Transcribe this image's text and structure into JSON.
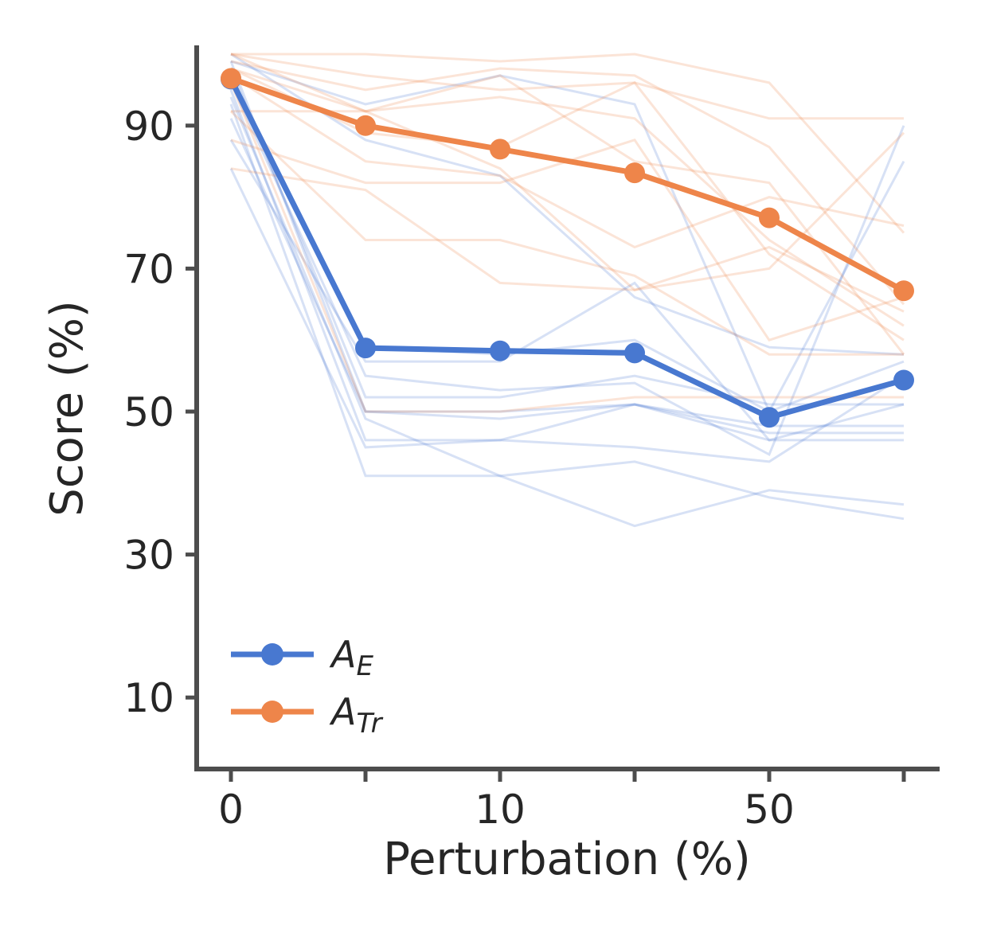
{
  "chart_data": {
    "type": "line",
    "xlabel": "Perturbation (%)",
    "ylabel": "Score (%)",
    "x_categories": [
      "0",
      "",
      "10",
      "",
      "50",
      ""
    ],
    "ylim": [
      0,
      101
    ],
    "yticks": [
      10,
      30,
      50,
      70,
      90
    ],
    "grid": false,
    "legend_position": "lower-left",
    "colors": {
      "AE": "#4878d0",
      "ATr": "#ee854a",
      "axis": "#4d4d4d"
    },
    "series": [
      {
        "name": "AE",
        "legend_main": "A",
        "legend_sub": "E",
        "color": "#4878d0",
        "values": [
          96.5,
          58.9,
          58.5,
          58.2,
          49.2,
          54.4
        ]
      },
      {
        "name": "ATr",
        "legend_main": "A",
        "legend_sub": "Tr",
        "color": "#ee854a",
        "values": [
          96.6,
          90.0,
          86.7,
          83.4,
          77.1,
          66.9
        ]
      }
    ],
    "background_series": {
      "AE": [
        [
          99,
          50,
          50,
          51,
          47,
          47
        ],
        [
          98,
          52,
          52,
          55,
          51,
          51
        ],
        [
          97,
          59,
          58,
          60,
          50,
          85
        ],
        [
          96,
          55,
          53,
          54,
          44,
          90
        ],
        [
          95,
          46,
          46,
          51,
          46,
          46
        ],
        [
          94,
          49,
          41,
          34,
          39,
          37
        ],
        [
          93,
          41,
          41,
          43,
          38,
          35
        ],
        [
          91,
          50,
          49,
          51,
          48,
          48
        ],
        [
          88,
          57,
          57,
          68,
          46,
          51
        ],
        [
          84,
          45,
          46,
          45,
          43,
          55
        ],
        [
          100,
          88,
          83,
          66,
          59,
          58
        ],
        [
          99,
          93,
          97,
          93,
          50,
          57
        ]
      ],
      "ATr": [
        [
          100,
          100,
          99,
          100,
          96,
          75
        ],
        [
          100,
          97,
          95,
          96,
          91,
          91
        ],
        [
          99,
          95,
          98,
          97,
          87,
          65
        ],
        [
          98,
          92,
          97,
          85,
          82,
          58
        ],
        [
          100,
          92,
          94,
          91,
          74,
          62
        ],
        [
          97,
          85,
          83,
          73,
          80,
          76
        ],
        [
          92,
          92,
          84,
          67,
          70,
          89
        ],
        [
          88,
          82,
          82,
          88,
          60,
          66
        ],
        [
          84,
          81,
          68,
          67,
          73,
          64
        ],
        [
          92,
          74,
          74,
          69,
          58,
          58
        ],
        [
          96,
          50,
          50,
          52,
          52,
          52
        ],
        [
          98,
          89,
          87,
          96,
          72,
          60
        ]
      ]
    }
  }
}
